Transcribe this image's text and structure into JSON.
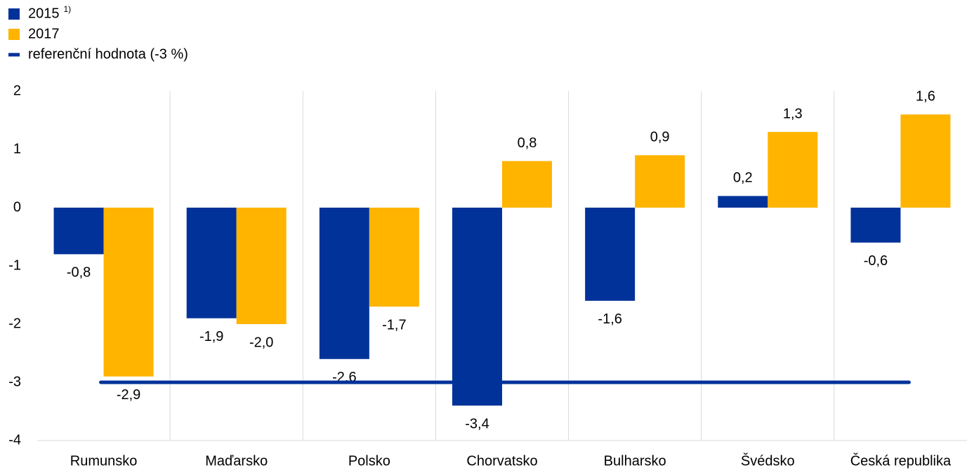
{
  "chart_data": {
    "type": "bar",
    "categories": [
      "Rumunsko",
      "Maďarsko",
      "Polsko",
      "Chorvatsko",
      "Bulharsko",
      "Švédsko",
      "Česká republika"
    ],
    "series": [
      {
        "name": "2015",
        "note_marker": "1)",
        "color": "#003299",
        "values": [
          -0.8,
          -1.9,
          -2.6,
          -3.4,
          -1.6,
          0.2,
          -0.6
        ],
        "value_labels": [
          "-0,8",
          "-1,9",
          "-2,6",
          "-3,4",
          "-1,6",
          "0,2",
          "-0,6"
        ]
      },
      {
        "name": "2017",
        "color": "#ffb400",
        "values": [
          -2.9,
          -2.0,
          -1.7,
          0.8,
          0.9,
          1.3,
          1.6
        ],
        "value_labels": [
          "-2,9",
          "-2,0",
          "-1,7",
          "0,8",
          "0,9",
          "1,3",
          "1,6"
        ]
      }
    ],
    "reference": {
      "name": "referenční hodnota (-3 %)",
      "value": -3,
      "color": "#003299"
    },
    "ylim": [
      -4,
      2
    ],
    "yticks": [
      2,
      1,
      0,
      -1,
      -2,
      -3,
      -4
    ]
  }
}
